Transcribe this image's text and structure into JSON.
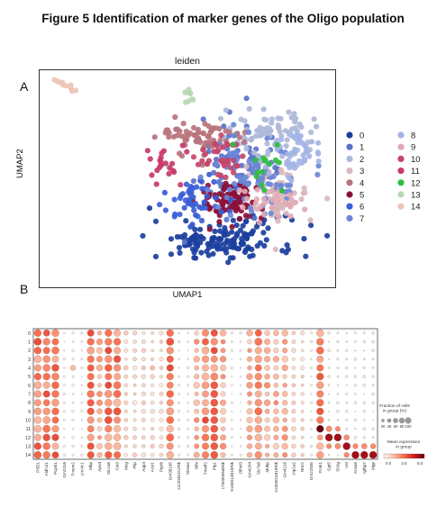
{
  "figure": {
    "title": "Figure 5 Identification of marker genes of the Oligo population",
    "panel_a": "A",
    "panel_b": "B"
  },
  "chart_data": [
    {
      "type": "scatter",
      "title": "leiden",
      "xlabel": "UMAP1",
      "ylabel": "UMAP2",
      "legend_placement": "right",
      "grid": false,
      "clusters": [
        {
          "name": "0",
          "color": "#1b3f9e",
          "cx": 0.62,
          "cy": 0.22,
          "sx": 0.12,
          "sy": 0.05,
          "n": 150
        },
        {
          "name": "1",
          "color": "#5a72c8",
          "cx": 0.68,
          "cy": 0.56,
          "sx": 0.07,
          "sy": 0.1,
          "n": 85
        },
        {
          "name": "2",
          "color": "#aeb8d8",
          "cx": 0.78,
          "cy": 0.7,
          "sx": 0.08,
          "sy": 0.06,
          "n": 90
        },
        {
          "name": "3",
          "color": "#d9b9bd",
          "cx": 0.81,
          "cy": 0.42,
          "sx": 0.06,
          "sy": 0.06,
          "n": 70
        },
        {
          "name": "4",
          "color": "#b8737c",
          "cx": 0.55,
          "cy": 0.69,
          "sx": 0.07,
          "sy": 0.04,
          "n": 70
        },
        {
          "name": "5",
          "color": "#8a1138",
          "cx": 0.64,
          "cy": 0.4,
          "sx": 0.05,
          "sy": 0.05,
          "n": 90
        },
        {
          "name": "6",
          "color": "#3a5dd6",
          "cx": 0.53,
          "cy": 0.4,
          "sx": 0.05,
          "sy": 0.06,
          "n": 50
        },
        {
          "name": "7",
          "color": "#6d87d8",
          "cx": 0.73,
          "cy": 0.52,
          "sx": 0.08,
          "sy": 0.08,
          "n": 70
        },
        {
          "name": "8",
          "color": "#a4b4e6",
          "cx": 0.86,
          "cy": 0.62,
          "sx": 0.04,
          "sy": 0.06,
          "n": 45
        },
        {
          "name": "9",
          "color": "#e2a9b3",
          "cx": 0.77,
          "cy": 0.38,
          "sx": 0.05,
          "sy": 0.04,
          "n": 30
        },
        {
          "name": "10",
          "color": "#c4456a",
          "cx": 0.6,
          "cy": 0.6,
          "sx": 0.04,
          "sy": 0.05,
          "n": 35
        },
        {
          "name": "11",
          "color": "#c93a6a",
          "cx": 0.43,
          "cy": 0.58,
          "sx": 0.03,
          "sy": 0.04,
          "n": 22
        },
        {
          "name": "12",
          "color": "#2fbf3d",
          "cx": 0.74,
          "cy": 0.55,
          "sx": 0.05,
          "sy": 0.07,
          "n": 15
        },
        {
          "name": "13",
          "color": "#b7d8b4",
          "cx": 0.51,
          "cy": 0.87,
          "sx": 0.008,
          "sy": 0.025,
          "n": 9
        },
        {
          "name": "14",
          "color": "#ecc6b7",
          "cx": 0.09,
          "cy": 0.93,
          "sx": 0.03,
          "sy": 0.015,
          "n": 12
        }
      ]
    },
    {
      "type": "heatmap",
      "subtype": "dotplot",
      "rows": [
        "0",
        "1",
        "2",
        "3",
        "4",
        "5",
        "6",
        "7",
        "8",
        "9",
        "10",
        "11",
        "12",
        "13",
        "14"
      ],
      "genes": [
        "Ptf2l1",
        "Aldh1l1",
        "Pcp4l1",
        "Gm2316",
        "Tmem2",
        "Lrrc4c1",
        "Mbp",
        "Apod",
        "Slc1a6",
        "Cst3",
        "Mog",
        "Pllp",
        "Aqp4",
        "Acsl1",
        "Ptprb",
        "Gm38195",
        "1112046J21Rik",
        "Slc6a2",
        "Nfix",
        "Tmeff2",
        "Plp1",
        "1700009N4Rik",
        "9130012B15Rik",
        "Olfml3",
        "Gm4204",
        "Slc7a8",
        "Mobp",
        "A230001M10Rik",
        "Gm4216",
        "Atp1a2",
        "Ntsr2",
        "Gm22835",
        "Pcsk1",
        "Ggt5",
        "Sh3g",
        "Ust",
        "Anxa5",
        "Igfbp7",
        "Mgp"
      ],
      "size_legend": {
        "title": "Fraction of cells in group (%)",
        "ticks": [
          "20",
          "40",
          "60",
          "80",
          "100"
        ]
      },
      "color_legend": {
        "title": "Mean expression in group",
        "ticks": [
          "0.0",
          "2.5",
          "5.0"
        ],
        "colormap": "Reds"
      }
    }
  ]
}
